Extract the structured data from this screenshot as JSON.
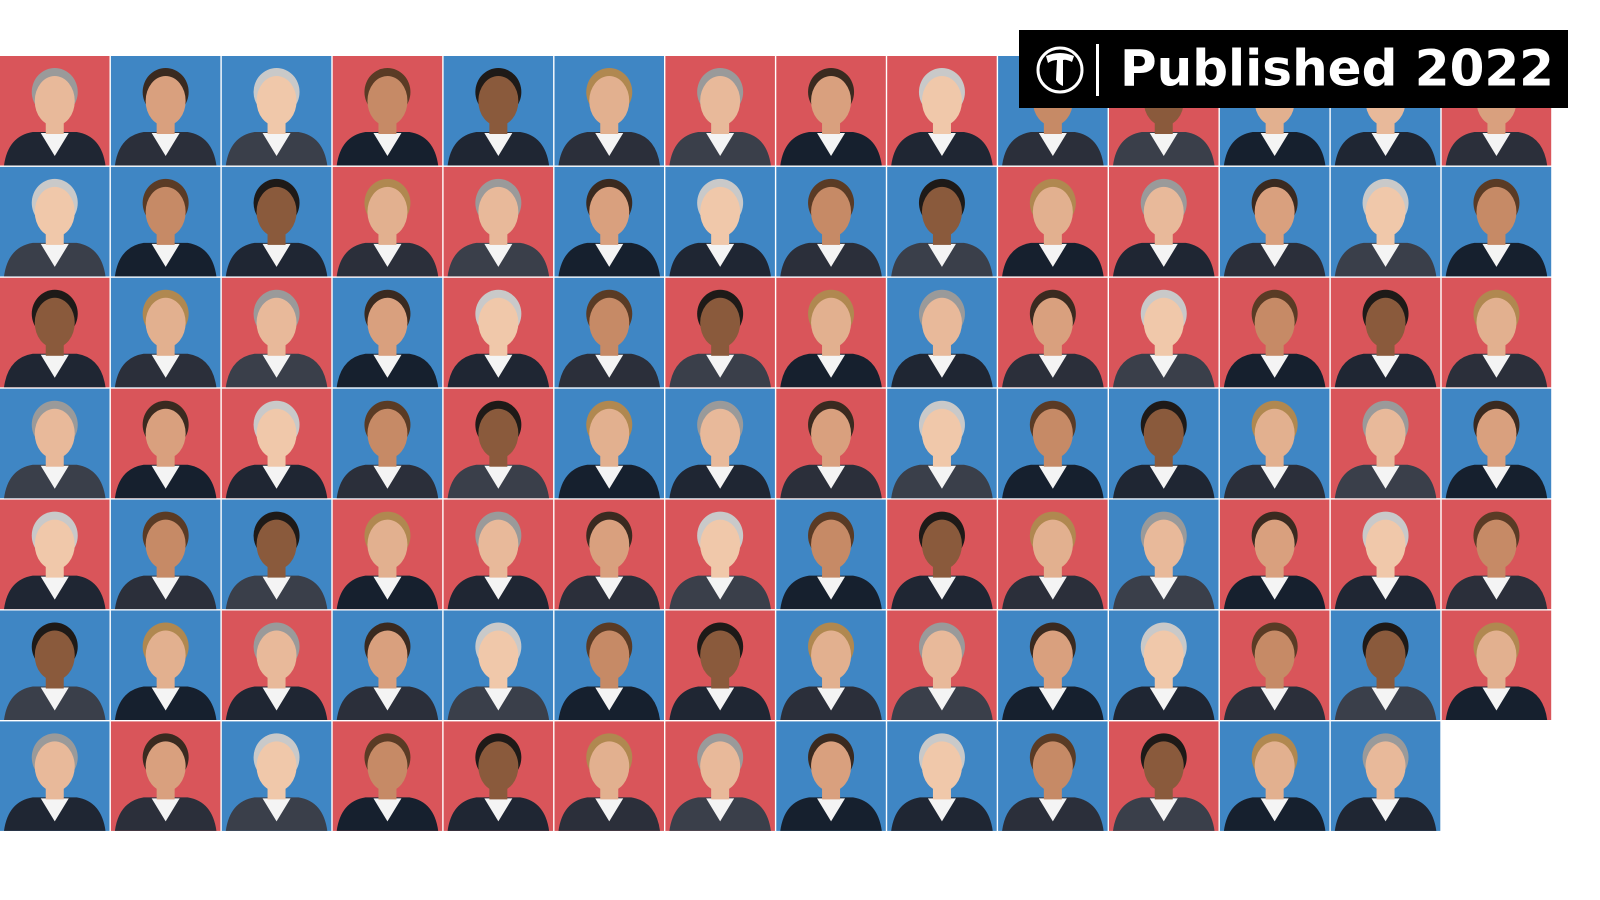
{
  "banner": {
    "text": "Published 2022"
  }
}
